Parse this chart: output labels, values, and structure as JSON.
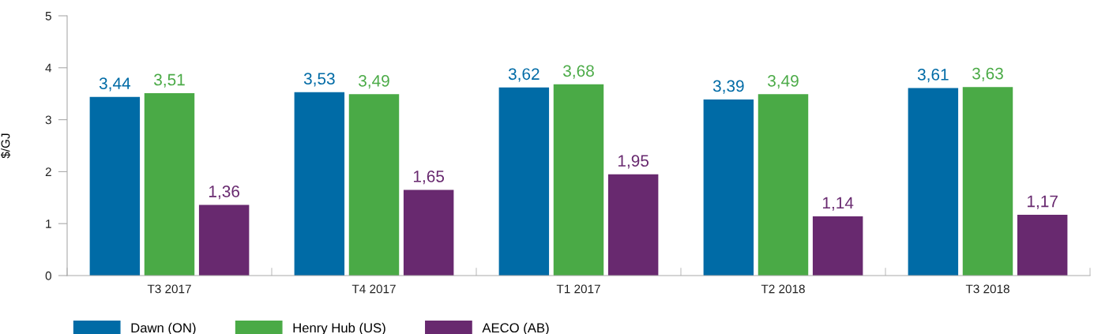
{
  "chart_data": {
    "type": "bar",
    "ylabel": "$/GJ",
    "categories": [
      "T3 2017",
      "T4 2017",
      "T1 2017",
      "T2 2018",
      "T3 2018"
    ],
    "series": [
      {
        "name": "Dawn (ON)",
        "color": "#006ba6",
        "values": [
          3.44,
          3.53,
          3.62,
          3.39,
          3.61
        ],
        "value_labels": [
          "3,44",
          "3,53",
          "3,62",
          "3,39",
          "3,61"
        ]
      },
      {
        "name": "Henry Hub (US)",
        "color": "#4aaa46",
        "values": [
          3.51,
          3.49,
          3.68,
          3.49,
          3.63
        ],
        "value_labels": [
          "3,51",
          "3,49",
          "3,68",
          "3,49",
          "3,63"
        ]
      },
      {
        "name": "AECO (AB)",
        "color": "#68296f",
        "values": [
          1.36,
          1.65,
          1.95,
          1.14,
          1.17
        ],
        "value_labels": [
          "1,36",
          "1,65",
          "1,95",
          "1,14",
          "1,17"
        ]
      }
    ],
    "ylim": [
      0,
      5
    ],
    "yticks": [
      0,
      1,
      2,
      3,
      4,
      5
    ],
    "grid": false,
    "legend": "bottom left"
  }
}
